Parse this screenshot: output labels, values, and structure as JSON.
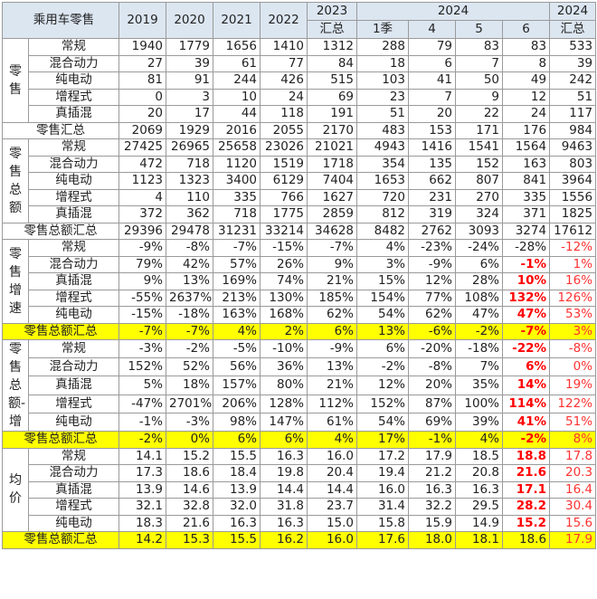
{
  "header": {
    "title": "乘用车零售",
    "years": [
      "2019",
      "2020",
      "2021",
      "2022"
    ],
    "y2023_top": "2023",
    "y2023_bottom": "汇总",
    "y2024_group": "2024",
    "y2024_sub": [
      "1季",
      "4",
      "5",
      "6"
    ],
    "y2024_total_top": "2024",
    "y2024_total_bottom": "汇总"
  },
  "sections": [
    {
      "group": "零售",
      "rows": [
        {
          "label": "常规",
          "values": [
            "1940",
            "1779",
            "1656",
            "1410",
            "1312",
            "288",
            "79",
            "83",
            "83",
            "533"
          ]
        },
        {
          "label": "混合动力",
          "values": [
            "27",
            "39",
            "61",
            "77",
            "84",
            "18",
            "6",
            "7",
            "8",
            "39"
          ]
        },
        {
          "label": "纯电动",
          "values": [
            "81",
            "91",
            "244",
            "426",
            "515",
            "103",
            "41",
            "50",
            "49",
            "242"
          ]
        },
        {
          "label": "增程式",
          "values": [
            "0",
            "3",
            "10",
            "24",
            "69",
            "23",
            "7",
            "9",
            "12",
            "51"
          ]
        },
        {
          "label": "真插混",
          "values": [
            "20",
            "17",
            "44",
            "118",
            "191",
            "51",
            "20",
            "22",
            "24",
            "117"
          ]
        }
      ],
      "total": {
        "label": "零售汇总",
        "values": [
          "2069",
          "1929",
          "2016",
          "2055",
          "2170",
          "483",
          "153",
          "171",
          "176",
          "984"
        ]
      }
    },
    {
      "group": "零售总额",
      "rows": [
        {
          "label": "常规",
          "values": [
            "27425",
            "26965",
            "25658",
            "23026",
            "21021",
            "4943",
            "1416",
            "1541",
            "1564",
            "9463"
          ]
        },
        {
          "label": "混合动力",
          "values": [
            "472",
            "718",
            "1120",
            "1519",
            "1718",
            "354",
            "135",
            "152",
            "163",
            "803"
          ]
        },
        {
          "label": "纯电动",
          "values": [
            "1123",
            "1323",
            "3400",
            "6129",
            "7404",
            "1653",
            "662",
            "807",
            "841",
            "3964"
          ]
        },
        {
          "label": "增程式",
          "values": [
            "4",
            "110",
            "335",
            "766",
            "1627",
            "720",
            "231",
            "270",
            "335",
            "1556"
          ]
        },
        {
          "label": "真插混",
          "values": [
            "372",
            "362",
            "718",
            "1775",
            "2859",
            "812",
            "319",
            "324",
            "371",
            "1825"
          ]
        }
      ],
      "total": {
        "label": "零售总额汇总",
        "values": [
          "29396",
          "29478",
          "31231",
          "33214",
          "34628",
          "8482",
          "2762",
          "3093",
          "3274",
          "17612"
        ]
      }
    },
    {
      "group": "零售增速",
      "rows": [
        {
          "label": "常规",
          "values": [
            "-9%",
            "-8%",
            "-7%",
            "-15%",
            "-7%",
            "4%",
            "-23%",
            "-24%",
            "-28%",
            "-12%"
          ]
        },
        {
          "label": "混合动力",
          "values": [
            "79%",
            "42%",
            "57%",
            "26%",
            "9%",
            "3%",
            "-9%",
            "6%",
            "-1%",
            "1%"
          ]
        },
        {
          "label": "真插混",
          "values": [
            "9%",
            "13%",
            "169%",
            "74%",
            "21%",
            "15%",
            "12%",
            "28%",
            "10%",
            "16%"
          ]
        },
        {
          "label": "增程式",
          "values": [
            "-55%",
            "2637%",
            "213%",
            "130%",
            "185%",
            "154%",
            "77%",
            "108%",
            "132%",
            "126%"
          ]
        },
        {
          "label": "纯电动",
          "values": [
            "-15%",
            "-18%",
            "163%",
            "168%",
            "62%",
            "54%",
            "62%",
            "47%",
            "47%",
            "53%"
          ]
        }
      ],
      "total": {
        "label": "零售总额汇总",
        "values": [
          "-7%",
          "-7%",
          "4%",
          "2%",
          "6%",
          "13%",
          "-6%",
          "-2%",
          "-7%",
          "3%"
        ]
      }
    },
    {
      "group": "零售总额-增",
      "rows": [
        {
          "label": "常规",
          "values": [
            "-3%",
            "-2%",
            "-5%",
            "-10%",
            "-9%",
            "6%",
            "-20%",
            "-18%",
            "-22%",
            "-8%"
          ]
        },
        {
          "label": "混合动力",
          "values": [
            "152%",
            "52%",
            "56%",
            "36%",
            "13%",
            "-2%",
            "-8%",
            "7%",
            "6%",
            "0%"
          ]
        },
        {
          "label": "真插混",
          "values": [
            "5%",
            "18%",
            "157%",
            "80%",
            "21%",
            "12%",
            "20%",
            "35%",
            "14%",
            "19%"
          ]
        },
        {
          "label": "增程式",
          "values": [
            "-47%",
            "2701%",
            "206%",
            "128%",
            "112%",
            "152%",
            "87%",
            "100%",
            "114%",
            "122%"
          ]
        },
        {
          "label": "纯电动",
          "values": [
            "-1%",
            "-3%",
            "98%",
            "147%",
            "61%",
            "54%",
            "69%",
            "39%",
            "41%",
            "51%"
          ]
        }
      ],
      "total": {
        "label": "零售总额汇总",
        "values": [
          "-2%",
          "0%",
          "6%",
          "6%",
          "4%",
          "17%",
          "-1%",
          "4%",
          "-2%",
          "8%"
        ]
      }
    },
    {
      "group": "均价",
      "rows": [
        {
          "label": "常规",
          "values": [
            "14.1",
            "15.2",
            "15.5",
            "16.3",
            "16.0",
            "17.2",
            "17.9",
            "18.5",
            "18.8",
            "17.8"
          ]
        },
        {
          "label": "混合动力",
          "values": [
            "17.3",
            "18.6",
            "18.4",
            "19.8",
            "20.4",
            "19.4",
            "21.2",
            "20.8",
            "21.6",
            "20.3"
          ]
        },
        {
          "label": "真插混",
          "values": [
            "13.9",
            "14.6",
            "13.9",
            "14.4",
            "14.4",
            "16.0",
            "16.3",
            "16.3",
            "17.1",
            "16.4"
          ]
        },
        {
          "label": "增程式",
          "values": [
            "32.1",
            "32.8",
            "32.0",
            "31.8",
            "23.7",
            "31.4",
            "32.2",
            "29.5",
            "28.2",
            "30.4"
          ]
        },
        {
          "label": "纯电动",
          "values": [
            "18.3",
            "21.6",
            "16.3",
            "16.3",
            "15.0",
            "15.8",
            "15.9",
            "14.9",
            "15.2",
            "15.6"
          ]
        }
      ],
      "total": {
        "label": "零售总额汇总",
        "values": [
          "14.2",
          "15.3",
          "15.5",
          "16.2",
          "16.0",
          "17.6",
          "18.0",
          "18.1",
          "18.6",
          "17.9"
        ]
      }
    }
  ],
  "colors": {
    "header_bg": "#dce6f1",
    "highlight_row_bg": "#ffff00",
    "emphasis_red": "#ff0000",
    "grid_border": "#9a9a9a"
  }
}
